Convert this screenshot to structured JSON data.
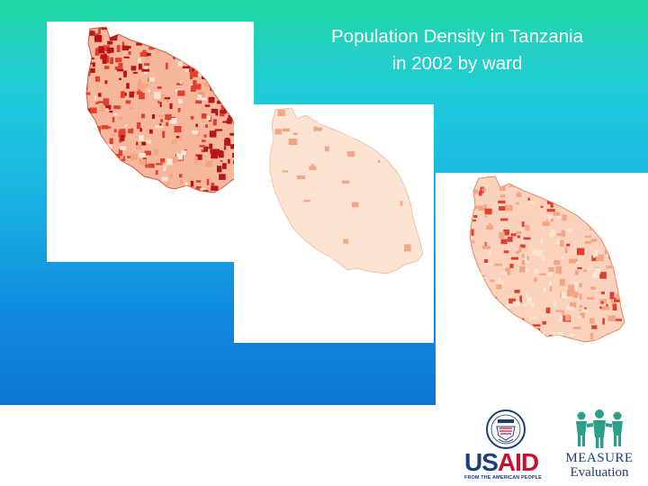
{
  "slide": {
    "title_line1": "Population Density in Tanzania",
    "title_line2": "in 2002 by ward"
  },
  "maps": [
    {
      "name": "tanzania-ward-density-map-dense",
      "shade": "high"
    },
    {
      "name": "tanzania-ward-density-map-light",
      "shade": "low"
    },
    {
      "name": "tanzania-ward-density-map-medium",
      "shade": "medium"
    }
  ],
  "colors": {
    "background_top": "#1fd69e",
    "background_bottom": "#0d74d6",
    "density_low": "#fde3d2",
    "density_mid": "#f4a582",
    "density_high": "#e0402c",
    "density_very_high": "#b8141a",
    "logo_blue": "#1a3e78",
    "logo_red": "#c8102e",
    "measure_green": "#2aa08a"
  },
  "logos": {
    "usaid": {
      "wordmark_part1": "US",
      "wordmark_part2": "AID",
      "tagline": "FROM THE AMERICAN PEOPLE"
    },
    "measure": {
      "wordmark": "MEASURE",
      "subtitle": "Evaluation"
    }
  }
}
